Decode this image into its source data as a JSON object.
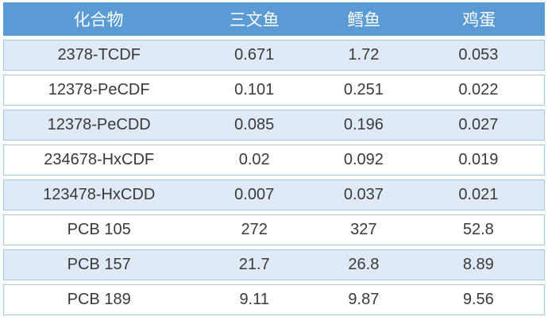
{
  "chart_data": {
    "type": "table",
    "columns": [
      "化合物",
      "三文鱼",
      "鳕鱼",
      "鸡蛋"
    ],
    "rows": [
      [
        "2378-TCDF",
        "0.671",
        "1.72",
        "0.053"
      ],
      [
        "12378-PeCDF",
        "0.101",
        "0.251",
        "0.022"
      ],
      [
        "12378-PeCDD",
        "0.085",
        "0.196",
        "0.027"
      ],
      [
        "234678-HxCDF",
        "0.02",
        "0.092",
        "0.019"
      ],
      [
        "123478-HxCDD",
        "0.007",
        "0.037",
        "0.021"
      ],
      [
        "PCB 105",
        "272",
        "327",
        "52.8"
      ],
      [
        "PCB 157",
        "21.7",
        "26.8",
        "8.89"
      ],
      [
        "PCB 189",
        "9.11",
        "9.87",
        "9.56"
      ]
    ],
    "legend_position": "none",
    "grid": "row-stripes"
  },
  "colors": {
    "header_bg": "#5b9bd5",
    "header_text": "#ffffff",
    "row_alt_bg": "#deeaf6",
    "row_plain_bg": "#ffffff",
    "row_border": "#a5c8e4",
    "body_text": "#3a3a3a",
    "page_bg": "#ffffff"
  }
}
